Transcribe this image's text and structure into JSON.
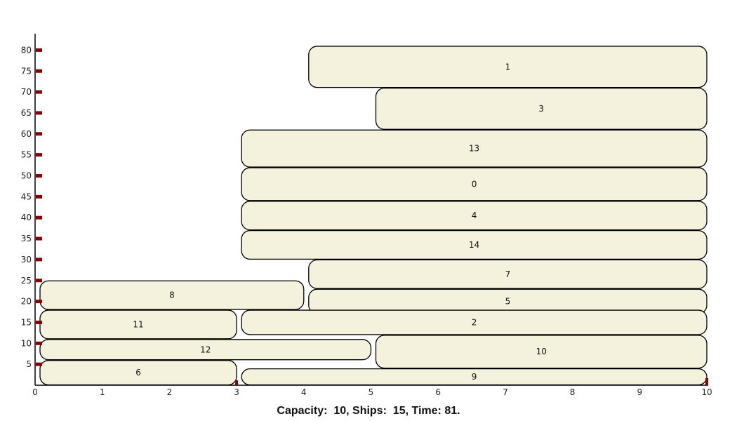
{
  "colors": {
    "ship_fill": "#f4f1dc",
    "ship_stroke": "#000000",
    "tick_marker": "#8b0000",
    "axis": "#000000"
  },
  "caption": {
    "capacity_label": "Capacity:",
    "capacity_value": "10,",
    "ships_label": "Ships:",
    "ships_value": "15,",
    "time_label": "Time:",
    "time_value": "81."
  },
  "chart_data": {
    "type": "table",
    "x_axis": {
      "ticks": [
        0,
        1,
        2,
        3,
        4,
        5,
        6,
        7,
        8,
        9,
        10
      ],
      "range": [
        0,
        10
      ]
    },
    "y_axis": {
      "ticks": [
        5,
        10,
        15,
        20,
        25,
        30,
        35,
        40,
        45,
        50,
        55,
        60,
        65,
        70,
        75,
        80
      ],
      "range": [
        0,
        81
      ]
    },
    "ships": [
      {
        "id": "1",
        "x_start": 4,
        "x_end": 10,
        "y_start": 71,
        "y_end": 81
      },
      {
        "id": "3",
        "x_start": 5,
        "x_end": 10,
        "y_start": 61,
        "y_end": 71
      },
      {
        "id": "13",
        "x_start": 3,
        "x_end": 10,
        "y_start": 52,
        "y_end": 61
      },
      {
        "id": "0",
        "x_start": 3,
        "x_end": 10,
        "y_start": 44,
        "y_end": 52
      },
      {
        "id": "4",
        "x_start": 3,
        "x_end": 10,
        "y_start": 37,
        "y_end": 44
      },
      {
        "id": "14",
        "x_start": 3,
        "x_end": 10,
        "y_start": 30,
        "y_end": 37
      },
      {
        "id": "7",
        "x_start": 4,
        "x_end": 10,
        "y_start": 23,
        "y_end": 30
      },
      {
        "id": "8",
        "x_start": 0,
        "x_end": 4,
        "y_start": 18,
        "y_end": 25
      },
      {
        "id": "5",
        "x_start": 4,
        "x_end": 10,
        "y_start": 17,
        "y_end": 23
      },
      {
        "id": "11",
        "x_start": 0,
        "x_end": 3,
        "y_start": 11,
        "y_end": 18
      },
      {
        "id": "2",
        "x_start": 3,
        "x_end": 10,
        "y_start": 12,
        "y_end": 18
      },
      {
        "id": "12",
        "x_start": 0,
        "x_end": 5,
        "y_start": 6,
        "y_end": 11
      },
      {
        "id": "10",
        "x_start": 5,
        "x_end": 10,
        "y_start": 4,
        "y_end": 12
      },
      {
        "id": "6",
        "x_start": 0,
        "x_end": 3,
        "y_start": 0,
        "y_end": 6
      },
      {
        "id": "9",
        "x_start": 3,
        "x_end": 10,
        "y_start": 0,
        "y_end": 4
      }
    ]
  }
}
